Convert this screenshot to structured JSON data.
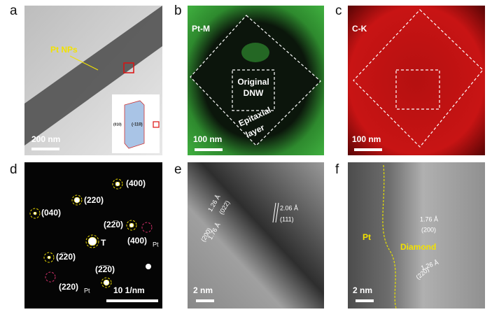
{
  "panels": [
    {
      "letter": "a",
      "labels": {
        "pt_nps": "Pt NPs",
        "scale": "200 nm",
        "inset_face1": "(-110)",
        "inset_face2": "(010)"
      }
    },
    {
      "letter": "b",
      "labels": {
        "element": "Pt-M",
        "core_line1": "Original",
        "core_line2": "DNW",
        "layer_line1": "Epitaxial",
        "layer_line2": "layer",
        "scale": "100 nm"
      }
    },
    {
      "letter": "c",
      "labels": {
        "element": "C-K",
        "scale": "100 nm"
      }
    },
    {
      "letter": "d",
      "labels": {
        "s400": "(400)",
        "s220": "(220)",
        "s040": "(040)",
        "s2b20": "(22̅0)",
        "s400pt": "(400)",
        "s400pt_sub": "Pt",
        "center": "T",
        "s2m20": "(2̅20)",
        "s2b2b0": "(2̅2̅0)",
        "s220pt": "(220)",
        "s220pt_sub": "Pt",
        "scale": "10 1/nm"
      }
    },
    {
      "letter": "e",
      "labels": {
        "d1": "1.26 Å",
        "h1": "(022)",
        "d2": "1.76 Å",
        "h2": "(200)",
        "d3": "2.06 Å",
        "h3": "(111)",
        "scale": "2 nm"
      }
    },
    {
      "letter": "f",
      "labels": {
        "pt": "Pt",
        "diamond": "Diamond",
        "d1": "1.76 Å",
        "h1": "(200)",
        "d2": "1.26 Å",
        "h2": "(220)",
        "scale": "2 nm"
      }
    }
  ]
}
